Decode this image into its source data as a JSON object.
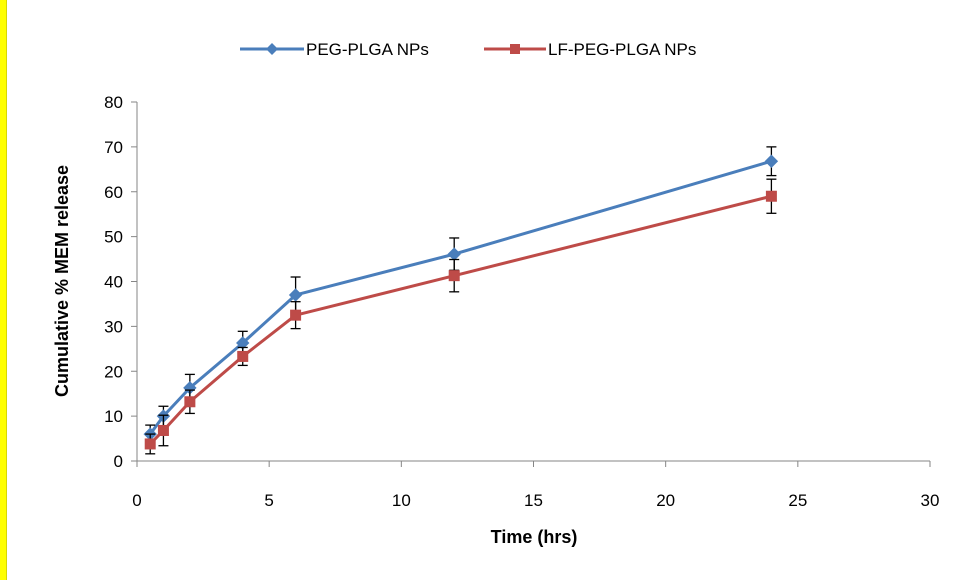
{
  "chart_data": {
    "type": "line",
    "xlabel": "Time (hrs)",
    "ylabel": "Cumulative % MEM release",
    "xlim": [
      0,
      30
    ],
    "ylim": [
      0,
      80
    ],
    "x_ticks": [
      0,
      5,
      10,
      15,
      20,
      25,
      30
    ],
    "y_ticks": [
      0,
      10,
      20,
      30,
      40,
      50,
      60,
      70,
      80
    ],
    "grid": false,
    "legend_position": "top",
    "series": [
      {
        "name": "PEG-PLGA NPs",
        "color": "#4a7ebb",
        "marker": "diamond",
        "points": [
          {
            "x": 0.5,
            "y": 6,
            "err": 2.0
          },
          {
            "x": 1,
            "y": 10,
            "err": 2.2
          },
          {
            "x": 2,
            "y": 16.3,
            "err": 3.0
          },
          {
            "x": 4,
            "y": 26.3,
            "err": 2.6
          },
          {
            "x": 6,
            "y": 37,
            "err": 4.0
          },
          {
            "x": 12,
            "y": 46.1,
            "err": 3.6
          },
          {
            "x": 24,
            "y": 66.8,
            "err": 3.2
          }
        ]
      },
      {
        "name": "LF-PEG-PLGA NPs",
        "color": "#be4b48",
        "marker": "square",
        "points": [
          {
            "x": 0.5,
            "y": 3.8,
            "err": 2.2
          },
          {
            "x": 1,
            "y": 6.8,
            "err": 3.4
          },
          {
            "x": 2,
            "y": 13.2,
            "err": 2.6
          },
          {
            "x": 4,
            "y": 23.3,
            "err": 2.0
          },
          {
            "x": 6,
            "y": 32.5,
            "err": 3.0
          },
          {
            "x": 12,
            "y": 41.3,
            "err": 3.6
          },
          {
            "x": 24,
            "y": 59,
            "err": 3.8
          }
        ]
      }
    ]
  }
}
